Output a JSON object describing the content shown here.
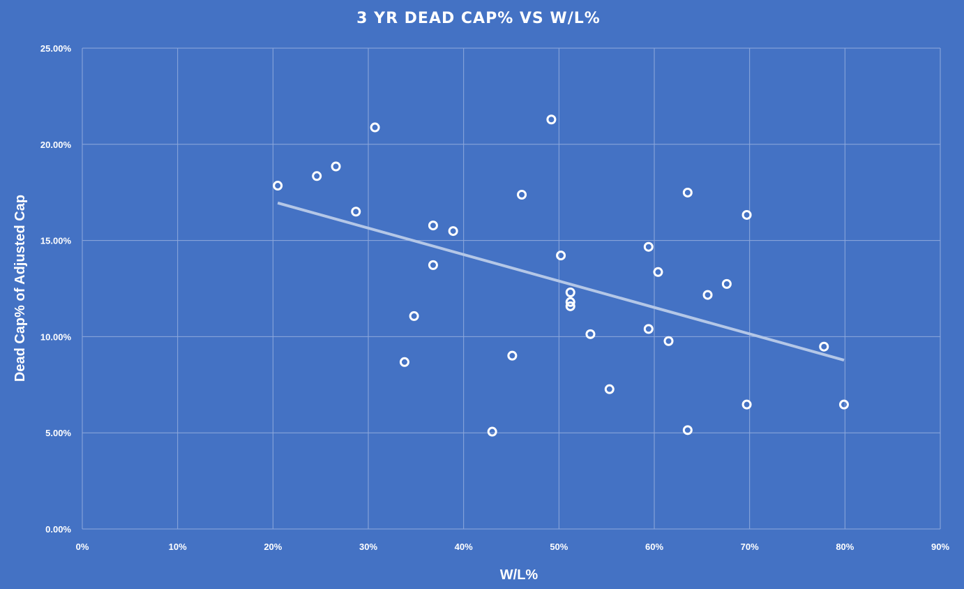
{
  "chart_data": {
    "type": "scatter",
    "title": "3 YR DEAD CAP% VS W/L%",
    "xlabel": "W/L%",
    "ylabel": "Dead Cap% of Adjusted Cap",
    "xlim": [
      0,
      0.9
    ],
    "ylim": [
      0,
      0.25
    ],
    "x_ticks": [
      0,
      0.1,
      0.2,
      0.3,
      0.4,
      0.5,
      0.6,
      0.7,
      0.8,
      0.9
    ],
    "x_tick_labels": [
      "0%",
      "10%",
      "20%",
      "30%",
      "40%",
      "50%",
      "60%",
      "70%",
      "80%",
      "90%"
    ],
    "y_ticks": [
      0,
      0.05,
      0.1,
      0.15,
      0.2,
      0.25
    ],
    "y_tick_labels": [
      "0.00%",
      "5.00%",
      "10.00%",
      "15.00%",
      "20.00%",
      "25.00%"
    ],
    "grid": true,
    "legend": "none",
    "marker": "hollow-circle",
    "colors": {
      "background": "#4472c4",
      "gridlines": "#8fa9dc",
      "points": "#ffffff",
      "trendline": "#b4c7e7",
      "text": "#ffffff"
    },
    "points": [
      {
        "x": 0.205,
        "y": 0.1785
      },
      {
        "x": 0.246,
        "y": 0.1835
      },
      {
        "x": 0.266,
        "y": 0.1885
      },
      {
        "x": 0.287,
        "y": 0.165
      },
      {
        "x": 0.307,
        "y": 0.2088
      },
      {
        "x": 0.338,
        "y": 0.0868
      },
      {
        "x": 0.348,
        "y": 0.1107
      },
      {
        "x": 0.368,
        "y": 0.1578
      },
      {
        "x": 0.368,
        "y": 0.1372
      },
      {
        "x": 0.389,
        "y": 0.1549
      },
      {
        "x": 0.43,
        "y": 0.0506
      },
      {
        "x": 0.451,
        "y": 0.0901
      },
      {
        "x": 0.461,
        "y": 0.1738
      },
      {
        "x": 0.492,
        "y": 0.2129
      },
      {
        "x": 0.502,
        "y": 0.1422
      },
      {
        "x": 0.512,
        "y": 0.123
      },
      {
        "x": 0.512,
        "y": 0.118
      },
      {
        "x": 0.512,
        "y": 0.1158
      },
      {
        "x": 0.533,
        "y": 0.1013
      },
      {
        "x": 0.553,
        "y": 0.0727
      },
      {
        "x": 0.594,
        "y": 0.1467
      },
      {
        "x": 0.594,
        "y": 0.104
      },
      {
        "x": 0.604,
        "y": 0.1336
      },
      {
        "x": 0.615,
        "y": 0.0977
      },
      {
        "x": 0.635,
        "y": 0.1749
      },
      {
        "x": 0.635,
        "y": 0.0514
      },
      {
        "x": 0.656,
        "y": 0.1217
      },
      {
        "x": 0.676,
        "y": 0.1274
      },
      {
        "x": 0.697,
        "y": 0.1633
      },
      {
        "x": 0.697,
        "y": 0.0647
      },
      {
        "x": 0.778,
        "y": 0.0948
      },
      {
        "x": 0.799,
        "y": 0.0647
      }
    ],
    "trendline": {
      "type": "linear",
      "from": {
        "x": 0.205,
        "y": 0.1695
      },
      "to": {
        "x": 0.799,
        "y": 0.0878
      }
    }
  }
}
